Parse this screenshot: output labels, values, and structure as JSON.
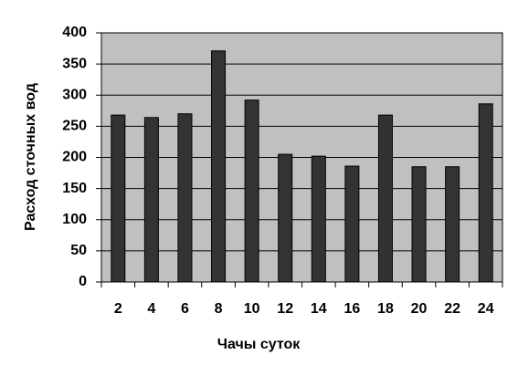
{
  "chart_data": {
    "type": "bar",
    "x_label": "Чачы суток",
    "y_label": "Расход сточных вод",
    "categories": [
      "2",
      "4",
      "6",
      "8",
      "10",
      "12",
      "14",
      "16",
      "18",
      "20",
      "22",
      "24"
    ],
    "values": [
      268,
      264,
      270,
      371,
      292,
      205,
      202,
      186,
      268,
      185,
      185,
      286
    ],
    "color": "#333333",
    "background": "#c0c0c0",
    "ylim": [
      0,
      400
    ],
    "yticks": [
      0,
      50,
      100,
      150,
      200,
      250,
      300,
      350,
      400
    ],
    "grid": true
  }
}
